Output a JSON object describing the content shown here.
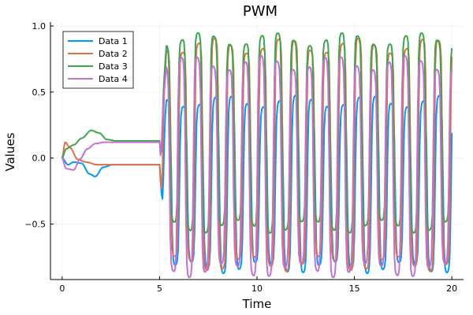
{
  "chart_data": {
    "type": "line",
    "title": "PWM",
    "xlabel": "Time",
    "ylabel": "Values",
    "xlim": [
      -0.6,
      20.6
    ],
    "ylim": [
      -0.92,
      1.03
    ],
    "x_ticks": [
      0,
      5,
      10,
      15,
      20
    ],
    "x_tick_labels": [
      "0",
      "5",
      "10",
      "15",
      "20"
    ],
    "y_ticks": [
      -0.5,
      0,
      0.5,
      1
    ],
    "y_tick_labels": [
      "−0.5",
      "0.0",
      "0.5",
      "1.0"
    ],
    "grid": true,
    "legend_position": "top-left",
    "sample_step": 0.05,
    "series": [
      {
        "name": "Data 1",
        "color": "#009AFA",
        "start": [
          [
            0,
            0.0
          ],
          [
            0.3,
            -0.05
          ],
          [
            0.6,
            -0.03
          ],
          [
            1.0,
            -0.04
          ],
          [
            1.4,
            -0.12
          ],
          [
            1.7,
            -0.14
          ],
          [
            2.1,
            -0.07
          ],
          [
            2.6,
            -0.05
          ],
          [
            5.0,
            -0.05
          ]
        ],
        "osc": {
          "period": 0.82,
          "high": 0.43,
          "low": -0.83,
          "sharpness": 2.2,
          "phase": 0.0
        }
      },
      {
        "name": "Data 2",
        "color": "#E26F46",
        "start": [
          [
            0,
            0.0
          ],
          [
            0.15,
            0.12
          ],
          [
            0.4,
            0.08
          ],
          [
            0.8,
            -0.01
          ],
          [
            1.2,
            -0.03
          ],
          [
            1.8,
            -0.05
          ],
          [
            2.6,
            -0.05
          ],
          [
            5.0,
            -0.05
          ]
        ],
        "osc": {
          "period": 0.82,
          "high": 0.85,
          "low": -0.8,
          "sharpness": 2.8,
          "phase": 0.3
        }
      },
      {
        "name": "Data 3",
        "color": "#3EA44E",
        "start": [
          [
            0,
            0.0
          ],
          [
            0.2,
            0.07
          ],
          [
            0.6,
            0.1
          ],
          [
            1.0,
            0.15
          ],
          [
            1.5,
            0.21
          ],
          [
            1.9,
            0.19
          ],
          [
            2.3,
            0.14
          ],
          [
            2.8,
            0.13
          ],
          [
            5.0,
            0.13
          ]
        ],
        "osc": {
          "period": 0.82,
          "high": 0.9,
          "low": -0.52,
          "sharpness": 2.6,
          "phase": 0.55
        }
      },
      {
        "name": "Data 4",
        "color": "#C371D2",
        "start": [
          [
            0,
            0.0
          ],
          [
            0.2,
            -0.08
          ],
          [
            0.6,
            -0.09
          ],
          [
            0.9,
            -0.01
          ],
          [
            1.3,
            0.07
          ],
          [
            1.7,
            0.11
          ],
          [
            2.2,
            0.12
          ],
          [
            2.8,
            0.12
          ],
          [
            5.0,
            0.12
          ]
        ],
        "osc": {
          "period": 0.82,
          "high": 0.72,
          "low": -0.85,
          "sharpness": 2.4,
          "phase": 0.8
        }
      }
    ]
  }
}
